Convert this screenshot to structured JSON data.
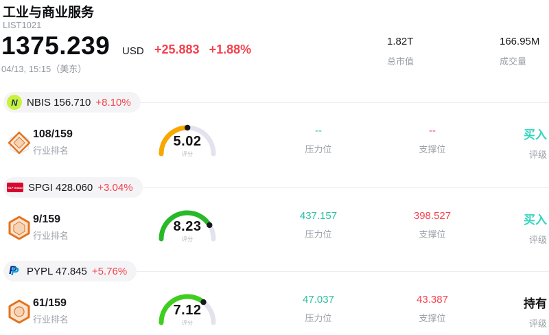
{
  "header": {
    "title": "工业与商业服务",
    "code": "LIST1021",
    "price": "1375.239",
    "currency": "USD",
    "change": "+25.883",
    "change_pct": "+1.88%",
    "timestamp": "04/13, 15:15（美东）",
    "market_cap": {
      "value": "1.82T",
      "label": "总市值"
    },
    "volume": {
      "value": "166.95M",
      "label": "成交量"
    }
  },
  "labels": {
    "rank": "行业排名",
    "score": "评分",
    "resistance": "压力位",
    "support": "支撑位",
    "rating": "评级"
  },
  "colors": {
    "up_red": "#f5414e",
    "teal_value": "#2cc0a0",
    "gauge_track": "#e3e3ed",
    "pill_bg": "#f4f4f6",
    "label_gray": "#9ba1a8"
  },
  "chart_data": {
    "type": "gauge",
    "note": "semicircle score gauges, scale 0-10",
    "series": [
      {
        "name": "NBIS",
        "score": 5.02
      },
      {
        "name": "SPGI",
        "score": 8.23
      },
      {
        "name": "PYPL",
        "score": 7.12
      }
    ]
  },
  "stocks": [
    {
      "ticker": "NBIS 156.710",
      "change_pct": "+8.10%",
      "logo_letter": "N",
      "rank": "108/159",
      "score": 5.02,
      "score_display": "5.02",
      "gauge_color": "#f7a800",
      "resistance": "--",
      "resistance_color": "#2cc0a0",
      "support": "--",
      "support_color": "#f5414e",
      "rating": "买入",
      "rating_color": "#32d6bd"
    },
    {
      "ticker": "SPGI 428.060",
      "change_pct": "+3.04%",
      "logo_text": "S&P Global",
      "rank": "9/159",
      "score": 8.23,
      "score_display": "8.23",
      "gauge_color": "#27b927",
      "resistance": "437.157",
      "resistance_color": "#2cc0a0",
      "support": "398.527",
      "support_color": "#f5414e",
      "rating": "买入",
      "rating_color": "#32d6bd"
    },
    {
      "ticker": "PYPL 47.845",
      "change_pct": "+5.76%",
      "logo_letter": "P",
      "rank": "61/159",
      "score": 7.12,
      "score_display": "7.12",
      "gauge_color": "#3ecf1e",
      "resistance": "47.037",
      "resistance_color": "#2cc0a0",
      "support": "43.387",
      "support_color": "#f5414e",
      "rating": "持有",
      "rating_color": "#111111"
    }
  ]
}
